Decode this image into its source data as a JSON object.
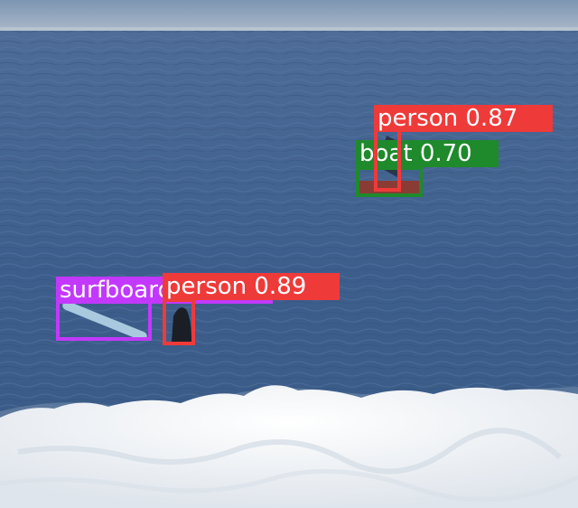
{
  "detections": [
    {
      "class_label": "surfboard",
      "confidence": "",
      "color": "#c338ff"
    },
    {
      "class_label": "person",
      "confidence": "0.89",
      "color": "#ef3a3a"
    },
    {
      "class_label": "person",
      "confidence": "0.87",
      "color": "#ef3a3a"
    },
    {
      "class_label": "boat",
      "confidence": "0.70",
      "color": "#1f8a2c"
    }
  ],
  "scene": {
    "sky_color": "#7f97b3",
    "horizon_color": "#b7c3cf",
    "ocean_color": "#3f5f8c",
    "foam_color": "#f2f4f6"
  }
}
